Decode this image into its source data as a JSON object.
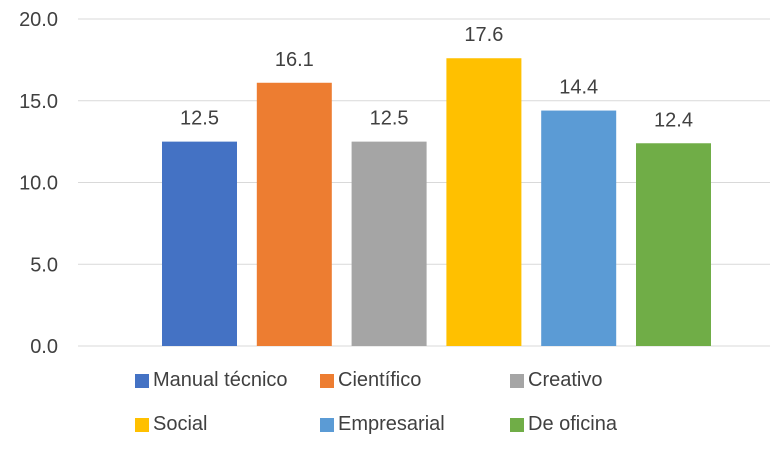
{
  "chart_data": {
    "type": "bar",
    "title": "",
    "xlabel": "",
    "ylabel": "",
    "categories": [
      "Manual técnico",
      "Científico",
      "Creativo",
      "Social",
      "Empresarial",
      "De oficina"
    ],
    "values": [
      12.5,
      16.1,
      12.5,
      17.6,
      14.4,
      12.4
    ],
    "value_labels": [
      "12.5",
      "16.1",
      "12.5",
      "17.6",
      "14.4",
      "12.4"
    ],
    "colors": [
      "#4472C4",
      "#ED7D31",
      "#A5A5A5",
      "#FFC000",
      "#5B9BD5",
      "#70AD47"
    ],
    "ylim": [
      0,
      20
    ],
    "yticks": [
      "0.0",
      "5.0",
      "10.0",
      "15.0",
      "20.0"
    ],
    "grid": true,
    "legend_position": "bottom"
  }
}
